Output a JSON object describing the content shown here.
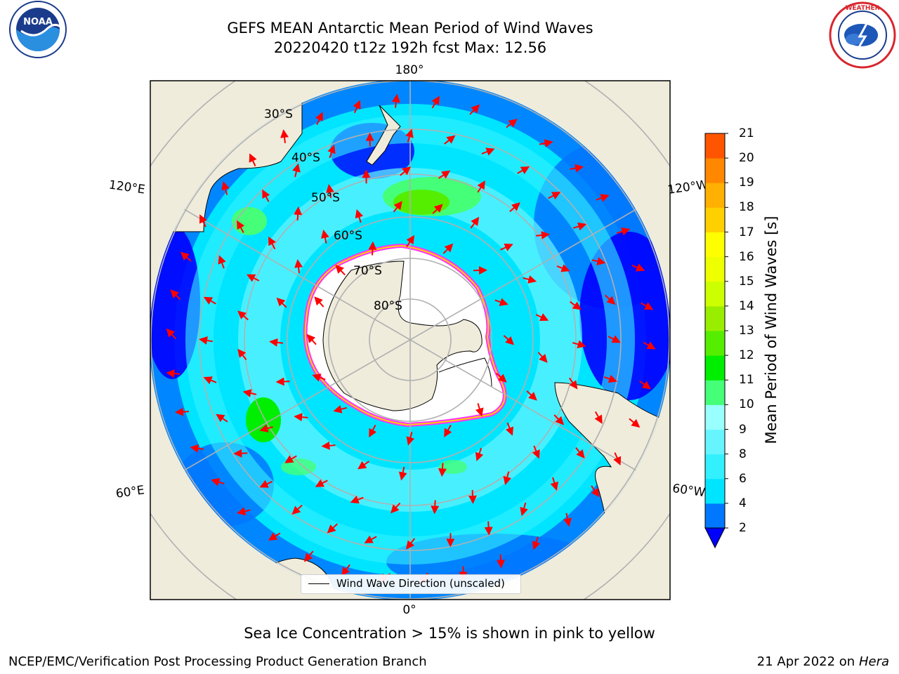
{
  "title_line1": "GEFS MEAN Antarctic Mean Period of Wind Waves",
  "title_line2": "20220420 t12z 192h fcst   Max: 12.56",
  "logos": {
    "left": {
      "name": "noaa-logo",
      "text": "NOAA",
      "ring_text": "NATIONAL OCEANIC AND ATMOSPHERIC ADMINISTRATION · U.S. DEPARTMENT OF COMMERCE"
    },
    "right": {
      "name": "nws-logo",
      "ring_text": "NATIONAL WEATHER SERVICE"
    }
  },
  "map": {
    "projection": "south-polar-stereographic",
    "lat_labels": [
      "30°S",
      "40°S",
      "50°S",
      "60°S",
      "70°S",
      "80°S"
    ],
    "lon_labels": {
      "top": "180°",
      "bottom": "0°",
      "left_upper": "120°E",
      "left_lower": "60°E",
      "right_upper": "120°W",
      "right_lower": "60°W"
    },
    "colors": {
      "land": "#efecdc",
      "ice_edge": "#ff33ff",
      "ice_inner": "#ffd000",
      "arrow": "#ff0000",
      "grid": "#b0b0b0"
    },
    "legend": "Wind Wave Direction (unscaled)"
  },
  "colorbar": {
    "title": "Mean Period of Wind Waves [s]",
    "ticks": [
      "2",
      "4",
      "6",
      "8",
      "9",
      "10",
      "11",
      "12",
      "13",
      "14",
      "15",
      "16",
      "17",
      "18",
      "19",
      "20",
      "21"
    ],
    "colors": [
      "#0077ff",
      "#00e5ff",
      "#33f0ff",
      "#66f5ff",
      "#99ffff",
      "#44ff77",
      "#00ee00",
      "#55ee00",
      "#99ee00",
      "#ccff00",
      "#eeff00",
      "#ffff00",
      "#ffd000",
      "#ffb000",
      "#ff8800",
      "#ff5500",
      "#ff2200",
      "#ff0000"
    ],
    "extend_color": "#0000ff"
  },
  "footer_note": "Sea Ice Concentration > 15% is shown in pink to yellow",
  "credit_left": "NCEP/EMC/Verification Post Processing Product Generation Branch",
  "credit_right_date": "21 Apr 2022 on",
  "credit_right_host": "Hera"
}
